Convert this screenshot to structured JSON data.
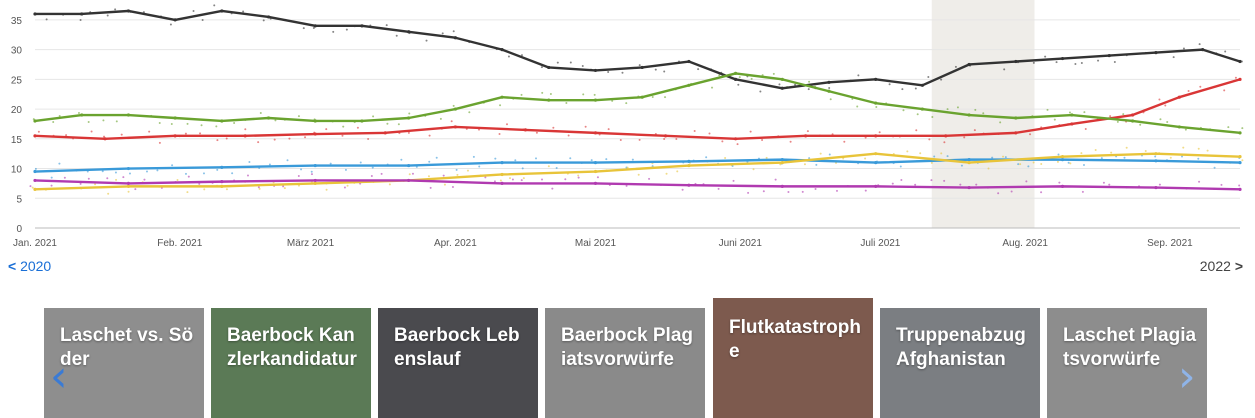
{
  "chart_data": {
    "type": "line",
    "ylim": [
      0,
      37
    ],
    "y_ticks": [
      0,
      5,
      10,
      15,
      20,
      25,
      30,
      35
    ],
    "month_labels": [
      "Jan. 2021",
      "Feb. 2021",
      "März 2021",
      "Apr. 2021",
      "Mai 2021",
      "Juni 2021",
      "Juli 2021",
      "Aug. 2021",
      "Sep. 2021"
    ],
    "grid": true,
    "x_domain_days": [
      0,
      258
    ],
    "highlight_range_days": [
      192,
      214
    ],
    "series": [
      {
        "color": "#333333",
        "x": [
          0,
          10,
          20,
          30,
          40,
          50,
          60,
          70,
          80,
          90,
          100,
          110,
          120,
          130,
          140,
          150,
          160,
          170,
          180,
          190,
          200,
          210,
          220,
          230,
          240,
          250,
          258
        ],
        "values": [
          36,
          36,
          36.5,
          35,
          36.5,
          35.5,
          34,
          34,
          33,
          32,
          30,
          27,
          26.5,
          27,
          28,
          25,
          23.5,
          24.5,
          25,
          24,
          27.5,
          28,
          28.5,
          29,
          29.5,
          30,
          28
        ]
      },
      {
        "color": "#d93636",
        "x": [
          0,
          15,
          30,
          45,
          60,
          75,
          90,
          105,
          120,
          135,
          150,
          165,
          180,
          195,
          210,
          222,
          235,
          245,
          258
        ],
        "values": [
          15.5,
          15,
          15.5,
          15.5,
          15.8,
          16,
          17,
          16.5,
          16,
          15.5,
          15,
          15.5,
          15.5,
          15.5,
          16,
          17.5,
          19,
          22,
          25
        ]
      },
      {
        "color": "#6aa32f",
        "x": [
          0,
          10,
          20,
          30,
          40,
          50,
          60,
          70,
          80,
          90,
          100,
          110,
          120,
          130,
          140,
          150,
          160,
          170,
          180,
          190,
          200,
          210,
          222,
          235,
          245,
          258
        ],
        "values": [
          18,
          19,
          19,
          18.5,
          18,
          18.5,
          18,
          18,
          18.5,
          20,
          22,
          21.5,
          21.5,
          22,
          24,
          26,
          25,
          23,
          21,
          20,
          19,
          18.5,
          19,
          18,
          17,
          16
        ]
      },
      {
        "color": "#3a9ad9",
        "x": [
          0,
          20,
          40,
          60,
          80,
          100,
          120,
          140,
          160,
          180,
          200,
          220,
          240,
          258
        ],
        "values": [
          9.5,
          10,
          10.2,
          10.5,
          10.5,
          11,
          11,
          11.2,
          11.5,
          11,
          11.5,
          11.5,
          11.3,
          11
        ]
      },
      {
        "color": "#e8c43a",
        "x": [
          0,
          20,
          40,
          60,
          80,
          100,
          120,
          140,
          160,
          180,
          200,
          220,
          240,
          258
        ],
        "values": [
          6.5,
          7,
          7,
          7.5,
          8,
          9,
          9.5,
          10.5,
          11,
          12.5,
          11,
          12,
          12.5,
          12
        ]
      },
      {
        "color": "#b03ab0",
        "x": [
          0,
          20,
          40,
          60,
          80,
          100,
          120,
          140,
          160,
          180,
          200,
          220,
          240,
          258
        ],
        "values": [
          8,
          7.5,
          7.8,
          8,
          8,
          7.5,
          7.5,
          7.2,
          7,
          7,
          6.8,
          7,
          6.8,
          6.5
        ]
      }
    ]
  },
  "nav": {
    "prev": "2020",
    "next": "2022",
    "prev_icon": "chevron-left-icon",
    "next_icon": "chevron-right-icon"
  },
  "carousel": {
    "cards": [
      {
        "label": "Laschet vs. Söder",
        "color": "#8e8e8e"
      },
      {
        "label": "Baerbock Kanzlerkandidatur",
        "color": "#5b7a56"
      },
      {
        "label": "Baerbock Lebenslauf",
        "color": "#4a4a4e"
      },
      {
        "label": "Baerbock Plagiatsvorwürfe",
        "color": "#8a8a8a"
      },
      {
        "label": "Flutkatastrophe",
        "color": "#7d5a4e"
      },
      {
        "label": "Truppenabzug Afghanistan",
        "color": "#7b7e82"
      },
      {
        "label": "Laschet Plagiatsvorwürfe",
        "color": "#8d8d8d"
      }
    ],
    "left_arrow": "‹",
    "right_arrow": "›"
  }
}
